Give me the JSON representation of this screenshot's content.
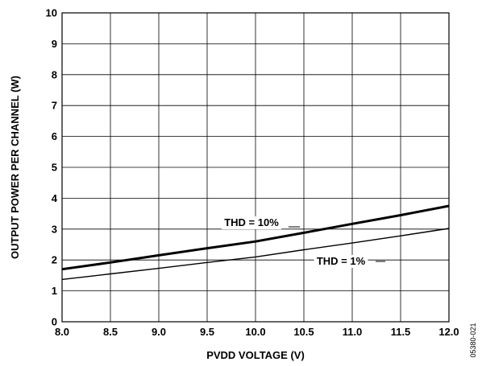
{
  "chart_data": {
    "type": "line",
    "title": "",
    "xlabel": "PVDD VOLTAGE (V)",
    "ylabel": "OUTPUT POWER PER CHANNEL (W)",
    "xlim": [
      8.0,
      12.0
    ],
    "ylim": [
      0,
      10
    ],
    "x_ticks": [
      "8.0",
      "8.5",
      "9.0",
      "9.5",
      "10.0",
      "10.5",
      "11.0",
      "11.5",
      "12.0"
    ],
    "y_ticks": [
      "0",
      "1",
      "2",
      "3",
      "4",
      "5",
      "6",
      "7",
      "8",
      "9",
      "10"
    ],
    "grid": true,
    "series": [
      {
        "name": "THD = 10%",
        "x": [
          8.0,
          8.5,
          9.0,
          9.5,
          10.0,
          10.5,
          11.0,
          11.5,
          12.0
        ],
        "values": [
          1.7,
          1.92,
          2.15,
          2.38,
          2.6,
          2.88,
          3.17,
          3.45,
          3.75
        ]
      },
      {
        "name": "THD = 1%",
        "x": [
          8.0,
          8.5,
          9.0,
          9.5,
          10.0,
          10.5,
          11.0,
          11.5,
          12.0
        ],
        "values": [
          1.37,
          1.55,
          1.73,
          1.92,
          2.1,
          2.33,
          2.55,
          2.78,
          3.02
        ]
      }
    ],
    "annotations": [
      {
        "text": "THD = 10%",
        "series": 0
      },
      {
        "text": "THD = 1%",
        "series": 1
      }
    ],
    "figure_id": "05380-021"
  }
}
